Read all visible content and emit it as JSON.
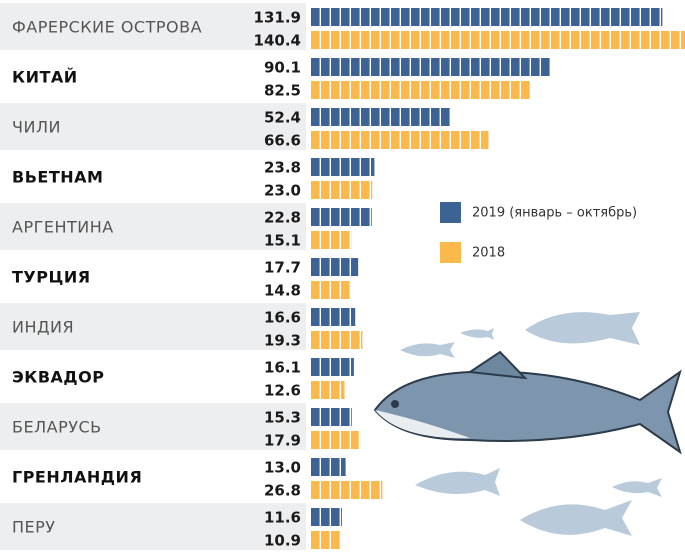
{
  "chart_data": {
    "type": "bar",
    "orientation": "horizontal",
    "categories": [
      "ФАРЕРСКИЕ ОСТРОВА",
      "КИТАЙ",
      "ЧИЛИ",
      "ВЬЕТНАМ",
      "АРГЕНТИНА",
      "ТУРЦИЯ",
      "ИНДИЯ",
      "ЭКВАДОР",
      "БЕЛАРУСЬ",
      "ГРЕНЛАНДИЯ",
      "ПЕРУ"
    ],
    "series": [
      {
        "name": "2019 (январь – октябрь)",
        "color": "#3d6395",
        "values": [
          131.9,
          90.1,
          52.4,
          23.8,
          22.8,
          17.7,
          16.6,
          16.1,
          15.3,
          13.0,
          11.6
        ],
        "value_labels": [
          "131.9",
          "90.1",
          "52.4",
          "23.8",
          "22.8",
          "17.7",
          "16.6",
          "16.1",
          "15.3",
          "13.0",
          "11.6"
        ]
      },
      {
        "name": "2018",
        "color": "#fbb94b",
        "values": [
          140.4,
          82.5,
          66.6,
          23.0,
          15.1,
          14.8,
          19.3,
          12.6,
          17.9,
          26.8,
          10.9
        ],
        "value_labels": [
          "140.4",
          "82.5",
          "66.6",
          "23.0",
          "15.1",
          "14.8",
          "19.3",
          "12.6",
          "17.9",
          "26.8",
          "10.9"
        ]
      }
    ]
  }
}
